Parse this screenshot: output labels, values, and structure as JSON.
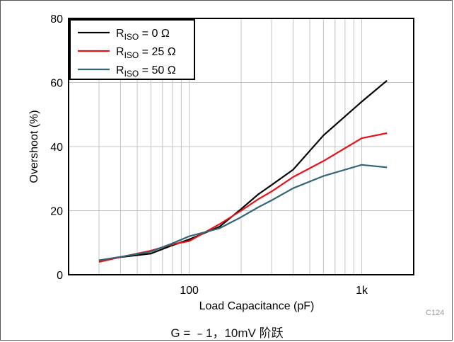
{
  "chart_data": {
    "type": "line",
    "xlabel": "Load Capacitance (pF)",
    "ylabel": "Overshoot (%)",
    "x_scale": "log",
    "xlim": [
      20,
      2000
    ],
    "ylim": [
      0,
      80
    ],
    "x_ticks": [
      100,
      1000
    ],
    "x_tick_labels": [
      "100",
      "1k"
    ],
    "y_ticks": [
      0,
      20,
      40,
      60,
      80
    ],
    "grid": true,
    "legend_position": "top-left",
    "series": [
      {
        "name": "R",
        "name_sub": "ISO",
        "name_suffix": " = 0 Ω",
        "color": "#000000",
        "x": [
          30,
          40,
          60,
          80,
          100,
          150,
          200,
          250,
          300,
          400,
          600,
          1000,
          1400
        ],
        "y": [
          4.3,
          5.5,
          6.6,
          9.2,
          11.0,
          15.0,
          20.5,
          25.0,
          28.0,
          32.8,
          43.5,
          54.0,
          60.6
        ]
      },
      {
        "name": "R",
        "name_sub": "ISO",
        "name_suffix": " = 25 Ω",
        "color": "#e8121a",
        "x": [
          30,
          40,
          60,
          80,
          100,
          150,
          200,
          250,
          300,
          400,
          600,
          1000,
          1400
        ],
        "y": [
          4.0,
          5.5,
          7.5,
          9.5,
          10.5,
          15.8,
          20.0,
          23.5,
          26.0,
          30.5,
          35.5,
          42.6,
          44.2
        ]
      },
      {
        "name": "R",
        "name_sub": "ISO",
        "name_suffix": " = 50 Ω",
        "color": "#336677",
        "x": [
          30,
          40,
          60,
          80,
          100,
          150,
          200,
          250,
          300,
          400,
          600,
          1000,
          1400
        ],
        "y": [
          4.5,
          5.6,
          7.2,
          9.8,
          12.0,
          14.5,
          18.0,
          21.0,
          23.2,
          27.0,
          30.8,
          34.3,
          33.5
        ]
      }
    ]
  },
  "caption": "G = ﹣1，10mV 阶跃",
  "figure_code": "C124"
}
